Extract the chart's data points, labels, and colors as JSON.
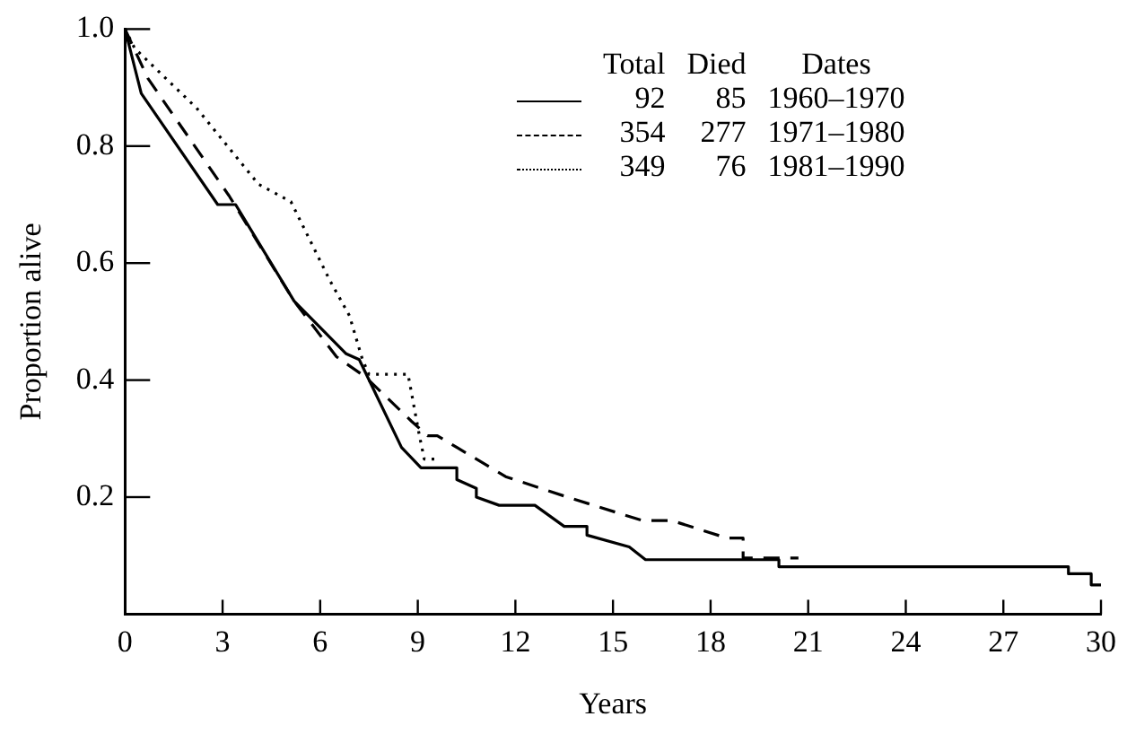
{
  "chart_data": {
    "type": "line",
    "xlabel": "Years",
    "ylabel": "Proportion alive",
    "legend_title": "Total Died Dates",
    "legend": "top right",
    "marker": "none",
    "xlim": [
      0,
      30
    ],
    "xticks": [
      0,
      3,
      6,
      9,
      12,
      15,
      18,
      21,
      24,
      27,
      30
    ],
    "ylim": [
      0,
      1
    ],
    "yticks": [
      0.2,
      0.4,
      0.6,
      0.8,
      {
        "value": 1,
        "label": "1.0"
      }
    ],
    "series": [
      {
        "name": "92 85 1960–1970",
        "color": "#000000",
        "line_style": "solid",
        "x": [
          0,
          0.5,
          2.85,
          3.4,
          5.2,
          6.8,
          7.2,
          8.5,
          9.1,
          10.2,
          10.2,
          10.8,
          10.8,
          11.5,
          11.5,
          12.6,
          13.5,
          14.2,
          14.2,
          15.5,
          16,
          18.9,
          20.1,
          20.1,
          29,
          29,
          29.7,
          29.7,
          30
        ],
        "values": [
          1,
          0.89,
          0.7,
          0.7,
          0.535,
          0.445,
          0.435,
          0.285,
          0.25,
          0.25,
          0.23,
          0.215,
          0.2,
          0.186,
          0.186,
          0.186,
          0.15,
          0.15,
          0.135,
          0.115,
          0.093,
          0.093,
          0.093,
          0.081,
          0.081,
          0.069,
          0.069,
          0.05,
          0.05
        ]
      },
      {
        "name": "354 277 1971–1980",
        "color": "#000000",
        "line_style": "dashed",
        "x": [
          0,
          0.7,
          3.2,
          5.2,
          6.5,
          7.4,
          8.8,
          9.3,
          9.6,
          11.7,
          13.6,
          15.9,
          16.8,
          18.5,
          19,
          19,
          20.7
        ],
        "values": [
          1,
          0.916,
          0.715,
          0.535,
          0.44,
          0.405,
          0.33,
          0.305,
          0.305,
          0.235,
          0.2,
          0.16,
          0.16,
          0.13,
          0.13,
          0.096,
          0.096
        ]
      },
      {
        "name": "349 76 1981–1990",
        "color": "#000000",
        "line_style": "dotted",
        "x": [
          0,
          0.3,
          2.2,
          4.1,
          5.1,
          6.3,
          6.9,
          7.3,
          7.5,
          8.7,
          9.05,
          9.2,
          9.6
        ],
        "values": [
          1,
          0.967,
          0.865,
          0.735,
          0.705,
          0.57,
          0.51,
          0.435,
          0.41,
          0.41,
          0.305,
          0.265,
          0.265
        ]
      }
    ]
  }
}
